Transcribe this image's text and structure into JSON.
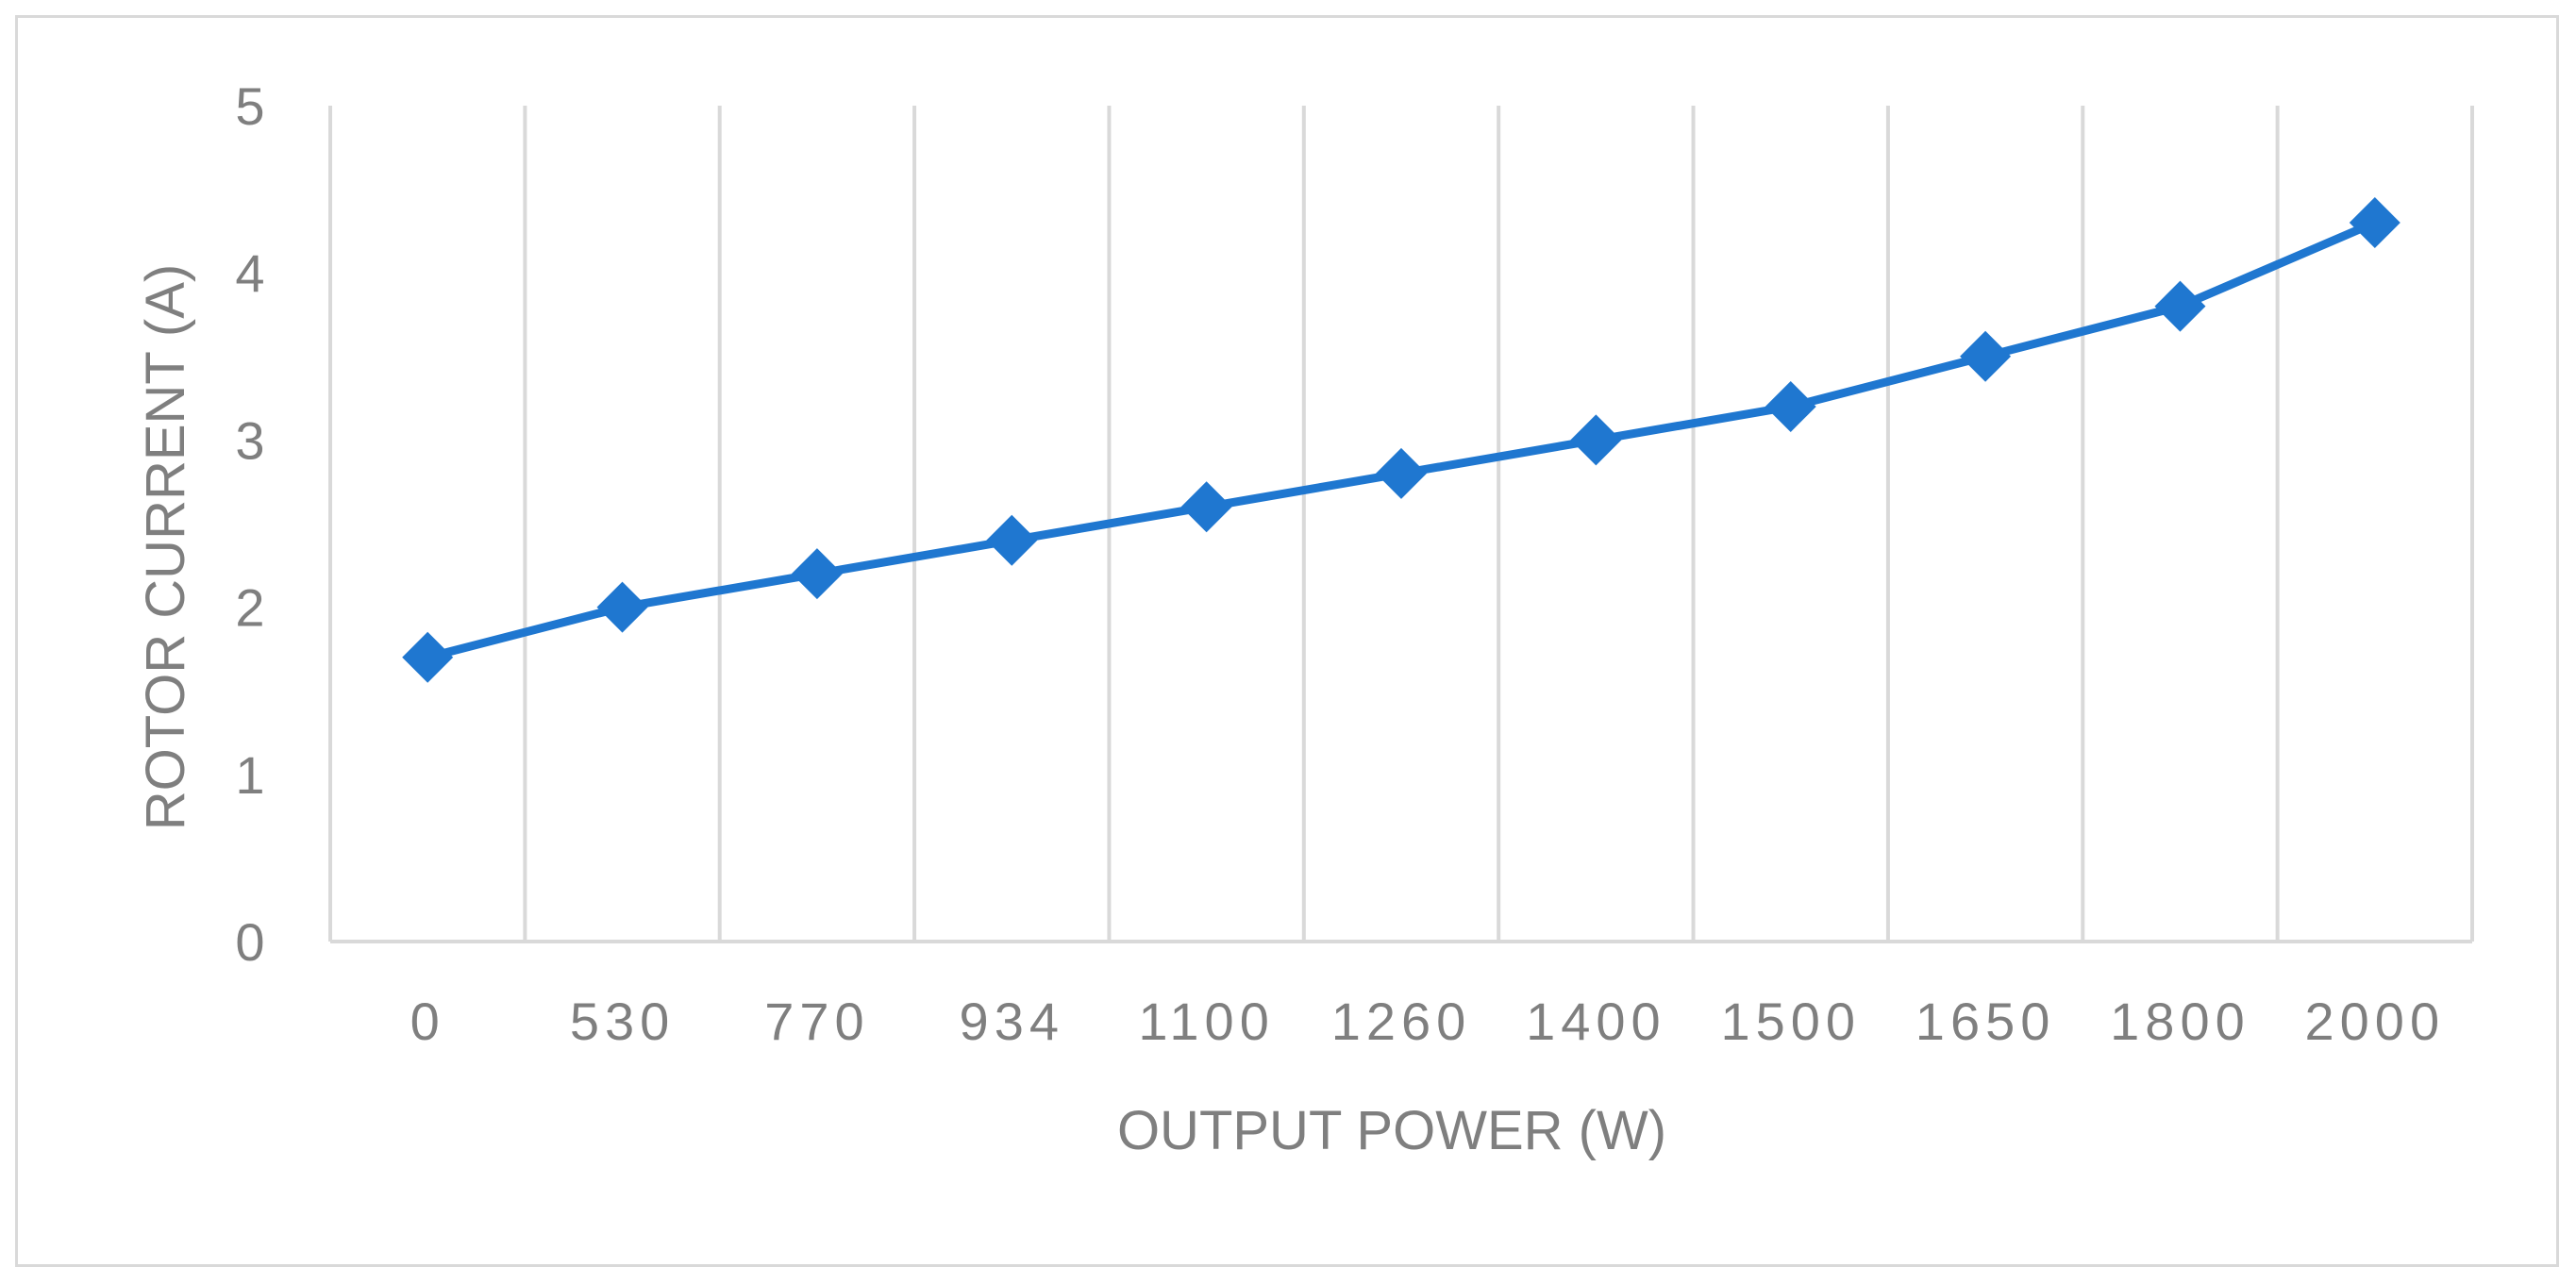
{
  "chart_data": {
    "type": "line",
    "title": "",
    "xlabel": "OUTPUT POWER (W)",
    "ylabel": "ROTOR CURRENT  (A)",
    "categories": [
      "0",
      "530",
      "770",
      "934",
      "1100",
      "1260",
      "1400",
      "1500",
      "1650",
      "1800",
      "2000"
    ],
    "series": [
      {
        "values": [
          1.7,
          2.0,
          2.2,
          2.4,
          2.6,
          2.8,
          3.0,
          3.2,
          3.5,
          3.8,
          4.3
        ],
        "color": "#1f77d0",
        "marker": "diamond"
      }
    ],
    "ylim": [
      0,
      5
    ],
    "yticks": [
      "0",
      "1",
      "2",
      "3",
      "4",
      "5"
    ],
    "grid": "vertical",
    "legend": "none"
  }
}
